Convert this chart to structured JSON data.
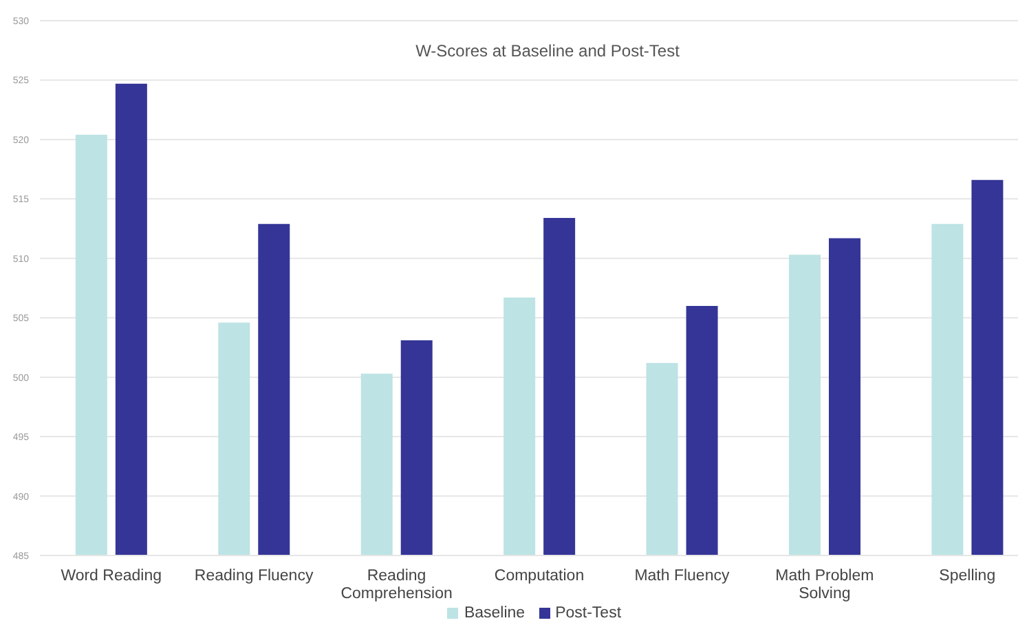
{
  "chart_data": {
    "type": "bar",
    "title": "W-Scores at Baseline and Post-Test",
    "categories": [
      "Word Reading",
      "Reading Fluency",
      "Reading Comprehension",
      "Computation",
      "Math Fluency",
      "Math Problem Solving",
      "Spelling"
    ],
    "series": [
      {
        "name": "Baseline",
        "color": "#bde3e4",
        "values": [
          520.4,
          504.6,
          500.3,
          506.7,
          501.2,
          510.3,
          512.9
        ]
      },
      {
        "name": "Post-Test",
        "color": "#353597",
        "values": [
          524.7,
          512.9,
          503.1,
          513.4,
          506.0,
          511.7,
          516.6
        ]
      }
    ],
    "ylim": [
      485,
      530
    ],
    "yticks": [
      485,
      490,
      495,
      500,
      505,
      510,
      515,
      520,
      525,
      530
    ],
    "grid": "y",
    "legend": "bottom"
  }
}
